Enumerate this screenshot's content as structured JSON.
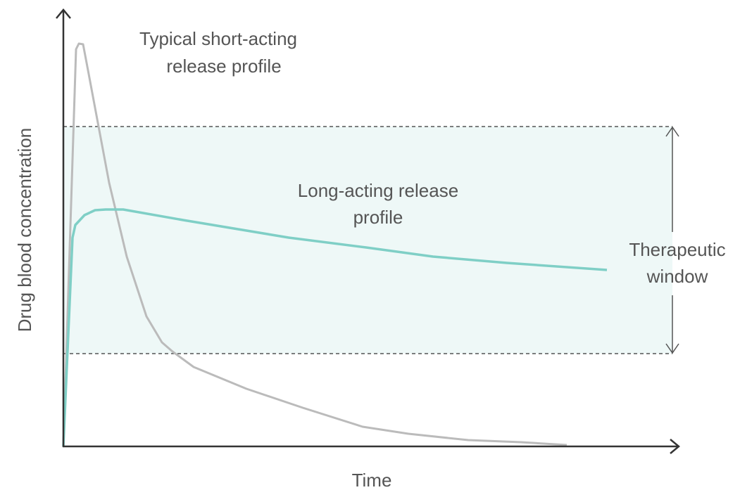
{
  "axes": {
    "x_label": "Time",
    "y_label": "Drug blood concentration"
  },
  "annotations": {
    "short_acting": [
      "Typical short-acting",
      "release profile"
    ],
    "long_acting": [
      "Long-acting release",
      "profile"
    ],
    "window": [
      "Therapeutic",
      "window"
    ]
  }
}
